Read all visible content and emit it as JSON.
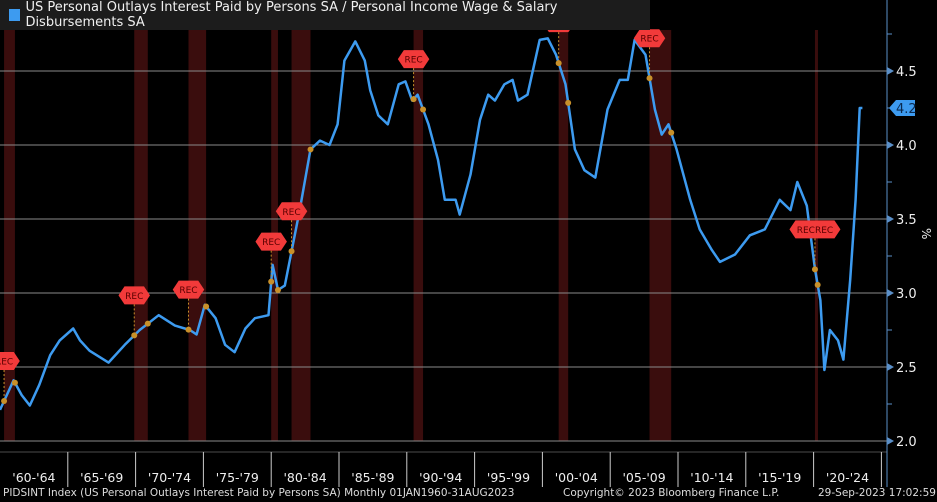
{
  "chart_data": {
    "type": "line",
    "title": "US Personal Outlays Interest Paid by Persons SA / Personal Income Wage & Salary Disbursements SA",
    "ylabel": "%",
    "ylim": [
      2.0,
      4.9
    ],
    "xlim": [
      1960,
      2025.1
    ],
    "yticks": [
      "2.0",
      "2.5",
      "3.0",
      "3.5",
      "4.0",
      "4.5"
    ],
    "ytick_values": [
      2.0,
      2.5,
      3.0,
      3.5,
      4.0,
      4.5
    ],
    "xtick_labels": [
      "'60-'64",
      "'65-'69",
      "'70-'74",
      "'75-'79",
      "'80-'84",
      "'85-'89",
      "'90-'94",
      "'95-'99",
      "'00-'04",
      "'05-'09",
      "'10-'14",
      "'15-'19",
      "'20-'24"
    ],
    "last_value_label": "4.2",
    "last_value": 4.25,
    "grid": true,
    "legend_position": "top-left",
    "series": [
      {
        "name": "US Personal Outlays Interest Paid by Persons SA / Personal Income Wage & Salary Disbursements SA",
        "color": "#3d9bf0",
        "x": [
          1960.0,
          1961.0,
          1961.6,
          1962.2,
          1962.9,
          1963.7,
          1964.4,
          1965.4,
          1965.9,
          1966.6,
          1968.0,
          1969.2,
          1970.3,
          1971.7,
          1972.9,
          1974.0,
          1974.5,
          1975.1,
          1975.9,
          1976.6,
          1977.3,
          1978.1,
          1978.8,
          1979.8,
          1980.1,
          1980.5,
          1981.0,
          1982.1,
          1982.9,
          1983.6,
          1984.3,
          1984.9,
          1985.4,
          1986.2,
          1986.9,
          1987.3,
          1987.9,
          1988.6,
          1989.4,
          1989.9,
          1990.4,
          1990.8,
          1991.6,
          1992.3,
          1992.8,
          1993.6,
          1993.9,
          1994.7,
          1995.4,
          1996.0,
          1996.5,
          1997.2,
          1997.8,
          1998.2,
          1998.9,
          1999.8,
          2000.4,
          2001.0,
          2001.7,
          2002.4,
          2003.1,
          2003.9,
          2004.8,
          2005.7,
          2006.3,
          2006.8,
          2007.6,
          2008.3,
          2008.8,
          2009.3,
          2009.9,
          2010.9,
          2011.6,
          2012.5,
          2013.1,
          2014.2,
          2015.3,
          2016.4,
          2017.5,
          2018.3,
          2018.8,
          2019.5,
          2020.1,
          2020.5,
          2020.8,
          2021.2,
          2021.8,
          2022.2,
          2022.7,
          2023.1,
          2023.4,
          2023.6
        ],
        "y": [
          2.21,
          2.41,
          2.31,
          2.24,
          2.38,
          2.58,
          2.68,
          2.76,
          2.68,
          2.61,
          2.53,
          2.65,
          2.75,
          2.85,
          2.78,
          2.75,
          2.72,
          2.92,
          2.83,
          2.65,
          2.6,
          2.76,
          2.83,
          2.85,
          3.19,
          3.02,
          3.05,
          3.56,
          3.97,
          4.03,
          4.0,
          4.14,
          4.57,
          4.7,
          4.57,
          4.37,
          4.2,
          4.14,
          4.41,
          4.43,
          4.3,
          4.34,
          4.14,
          3.9,
          3.63,
          3.63,
          3.53,
          3.8,
          4.17,
          4.34,
          4.3,
          4.41,
          4.44,
          4.3,
          4.34,
          4.71,
          4.72,
          4.61,
          4.41,
          3.97,
          3.83,
          3.78,
          4.24,
          4.44,
          4.44,
          4.71,
          4.61,
          4.24,
          4.07,
          4.14,
          3.97,
          3.63,
          3.43,
          3.29,
          3.21,
          3.26,
          3.39,
          3.43,
          3.63,
          3.56,
          3.75,
          3.59,
          3.16,
          2.95,
          2.48,
          2.75,
          2.68,
          2.55,
          3.09,
          3.63,
          4.25,
          4.25
        ]
      }
    ],
    "recessions": [
      {
        "start": 1960.3,
        "end": 1961.1,
        "label": "REC"
      },
      {
        "start": 1969.9,
        "end": 1970.9,
        "label": "REC"
      },
      {
        "start": 1973.9,
        "end": 1975.2,
        "label": "REC"
      },
      {
        "start": 1980.0,
        "end": 1980.5,
        "label": "REC"
      },
      {
        "start": 1981.5,
        "end": 1982.9,
        "label": "REC"
      },
      {
        "start": 1990.5,
        "end": 1991.2,
        "label": "REC"
      },
      {
        "start": 2001.2,
        "end": 2001.9,
        "label": "REC"
      },
      {
        "start": 2007.9,
        "end": 2009.5,
        "label": "REC"
      },
      {
        "start": 2020.1,
        "end": 2020.3,
        "label": "RECREC"
      }
    ],
    "colors": {
      "background": "#000000",
      "recession": "#3a0d0d",
      "grid": "#8a8a8a",
      "axis": "#5a8fc8",
      "rec_label": "#f23a3a",
      "marker": "#c8902a"
    }
  },
  "footer": {
    "source": "PIDSINT Index (US Personal Outlays Interest Paid by Persons SA)  Monthly 01JAN1960-31AUG2023",
    "copyright": "Copyright© 2023 Bloomberg Finance L.P.",
    "timestamp": "29-Sep-2023 17:02:59"
  }
}
